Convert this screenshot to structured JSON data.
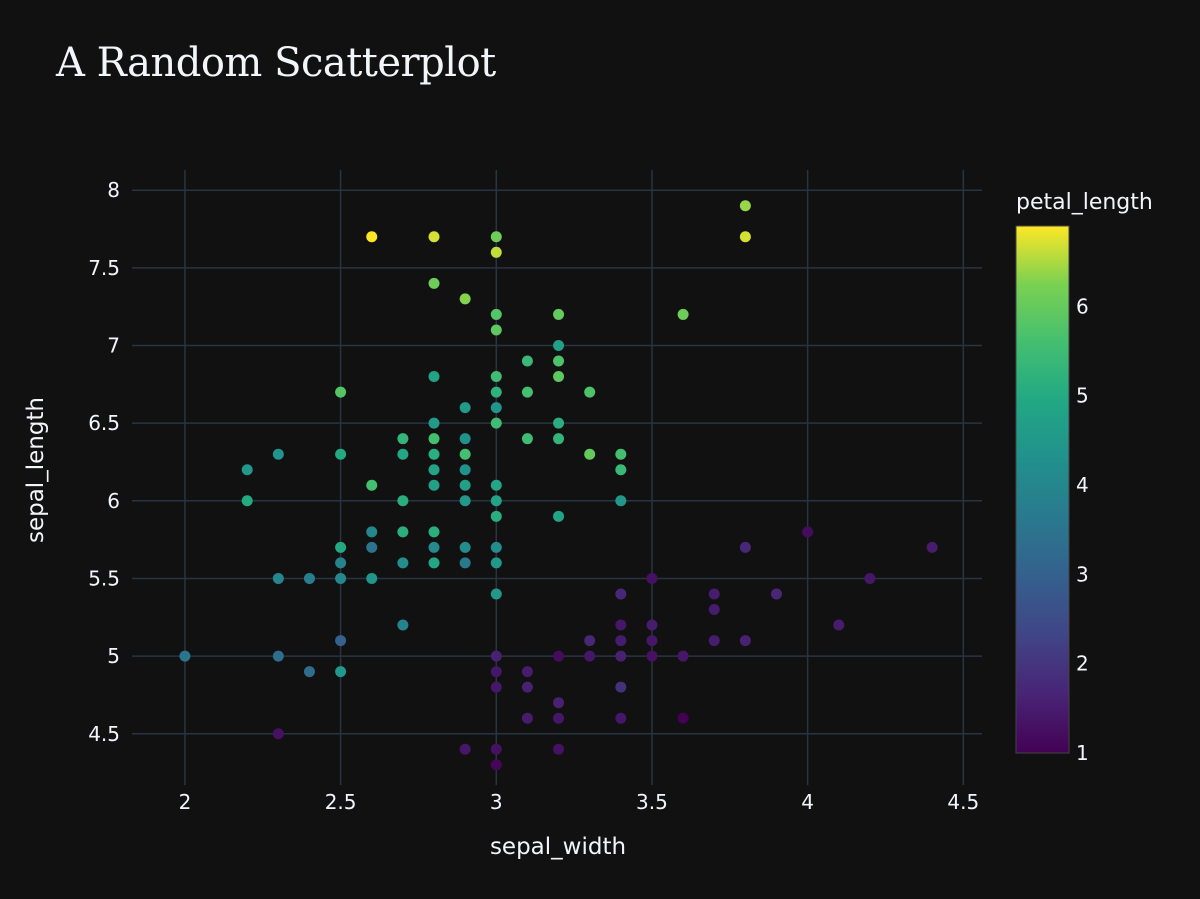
{
  "chart_data": {
    "type": "scatter",
    "title": "A Random Scatterplot",
    "xlabel": "sepal_width",
    "ylabel": "sepal_length",
    "xlim": [
      1.83,
      4.56
    ],
    "ylim": [
      4.17,
      8.13
    ],
    "x_ticks": [
      "2",
      "2.5",
      "3",
      "3.5",
      "4",
      "4.5"
    ],
    "y_ticks": [
      "4.5",
      "5",
      "5.5",
      "6",
      "6.5",
      "7",
      "7.5",
      "8"
    ],
    "colorbar": {
      "title": "petal_length",
      "range": [
        1,
        6.9
      ],
      "ticks": [
        "1",
        "2",
        "3",
        "4",
        "5",
        "6"
      ],
      "colorscale": "Viridis"
    },
    "grid": true,
    "background": "#111111",
    "grid_color": "#283442",
    "text_color": "#f2f5fa",
    "points": [
      [
        2.0,
        5.0,
        3.5
      ],
      [
        2.2,
        6.2,
        4.5
      ],
      [
        2.2,
        6.0,
        5.0
      ],
      [
        2.3,
        6.3,
        4.4
      ],
      [
        2.3,
        5.5,
        4.0
      ],
      [
        2.3,
        5.0,
        3.3
      ],
      [
        2.3,
        4.5,
        1.3
      ],
      [
        2.4,
        5.5,
        3.8
      ],
      [
        2.4,
        4.9,
        3.3
      ],
      [
        2.5,
        6.7,
        5.8
      ],
      [
        2.5,
        6.3,
        5.0
      ],
      [
        2.5,
        5.7,
        5.0
      ],
      [
        2.5,
        5.6,
        3.9
      ],
      [
        2.5,
        5.5,
        4.0
      ],
      [
        2.5,
        5.1,
        3.0
      ],
      [
        2.5,
        4.9,
        4.5
      ],
      [
        2.6,
        7.7,
        6.9
      ],
      [
        2.6,
        6.1,
        5.6
      ],
      [
        2.6,
        5.8,
        4.0
      ],
      [
        2.6,
        5.7,
        3.5
      ],
      [
        2.6,
        5.5,
        4.4
      ],
      [
        2.7,
        6.4,
        5.3
      ],
      [
        2.7,
        6.3,
        4.9
      ],
      [
        2.7,
        6.0,
        5.1
      ],
      [
        2.7,
        5.8,
        5.1
      ],
      [
        2.7,
        5.6,
        4.2
      ],
      [
        2.7,
        5.2,
        3.9
      ],
      [
        2.8,
        7.7,
        6.7
      ],
      [
        2.8,
        7.4,
        6.1
      ],
      [
        2.8,
        6.8,
        4.8
      ],
      [
        2.8,
        6.5,
        4.6
      ],
      [
        2.8,
        6.4,
        5.6
      ],
      [
        2.8,
        6.3,
        5.1
      ],
      [
        2.8,
        6.2,
        4.8
      ],
      [
        2.8,
        6.1,
        4.7
      ],
      [
        2.8,
        5.8,
        5.1
      ],
      [
        2.8,
        5.7,
        4.1
      ],
      [
        2.8,
        5.6,
        4.9
      ],
      [
        2.9,
        7.3,
        6.3
      ],
      [
        2.9,
        6.6,
        4.6
      ],
      [
        2.9,
        6.4,
        4.3
      ],
      [
        2.9,
        6.3,
        5.6
      ],
      [
        2.9,
        6.2,
        4.3
      ],
      [
        2.9,
        6.1,
        4.7
      ],
      [
        2.9,
        6.0,
        4.5
      ],
      [
        2.9,
        5.7,
        4.2
      ],
      [
        2.9,
        5.6,
        3.6
      ],
      [
        2.9,
        4.4,
        1.4
      ],
      [
        3.0,
        7.7,
        6.1
      ],
      [
        3.0,
        7.6,
        6.6
      ],
      [
        3.0,
        7.2,
        5.8
      ],
      [
        3.0,
        7.1,
        5.9
      ],
      [
        3.0,
        6.8,
        5.5
      ],
      [
        3.0,
        6.7,
        5.2
      ],
      [
        3.0,
        6.6,
        4.4
      ],
      [
        3.0,
        6.5,
        5.5
      ],
      [
        3.0,
        6.1,
        4.9
      ],
      [
        3.0,
        6.0,
        4.8
      ],
      [
        3.0,
        5.9,
        5.1
      ],
      [
        3.0,
        5.7,
        4.2
      ],
      [
        3.0,
        5.6,
        4.5
      ],
      [
        3.0,
        5.4,
        4.5
      ],
      [
        3.0,
        5.0,
        1.6
      ],
      [
        3.0,
        4.9,
        1.4
      ],
      [
        3.0,
        4.8,
        1.4
      ],
      [
        3.0,
        4.4,
        1.3
      ],
      [
        3.0,
        4.3,
        1.1
      ],
      [
        3.1,
        6.9,
        5.4
      ],
      [
        3.1,
        6.7,
        5.6
      ],
      [
        3.1,
        6.4,
        5.5
      ],
      [
        3.1,
        4.9,
        1.5
      ],
      [
        3.1,
        4.8,
        1.6
      ],
      [
        3.1,
        4.6,
        1.5
      ],
      [
        3.2,
        7.2,
        6.0
      ],
      [
        3.2,
        7.0,
        4.7
      ],
      [
        3.2,
        6.9,
        5.7
      ],
      [
        3.2,
        6.8,
        5.9
      ],
      [
        3.2,
        6.5,
        5.1
      ],
      [
        3.2,
        6.4,
        5.3
      ],
      [
        3.2,
        5.9,
        4.8
      ],
      [
        3.2,
        5.0,
        1.2
      ],
      [
        3.2,
        4.7,
        1.6
      ],
      [
        3.2,
        4.6,
        1.4
      ],
      [
        3.2,
        4.4,
        1.3
      ],
      [
        3.3,
        6.7,
        5.7
      ],
      [
        3.3,
        6.3,
        6.0
      ],
      [
        3.3,
        5.1,
        1.7
      ],
      [
        3.3,
        5.0,
        1.4
      ],
      [
        3.4,
        6.3,
        5.6
      ],
      [
        3.4,
        6.2,
        5.4
      ],
      [
        3.4,
        6.0,
        4.5
      ],
      [
        3.4,
        5.4,
        1.7
      ],
      [
        3.4,
        5.2,
        1.4
      ],
      [
        3.4,
        5.1,
        1.5
      ],
      [
        3.4,
        5.0,
        1.6
      ],
      [
        3.4,
        4.8,
        1.9
      ],
      [
        3.4,
        4.6,
        1.4
      ],
      [
        3.5,
        5.5,
        1.3
      ],
      [
        3.5,
        5.2,
        1.5
      ],
      [
        3.5,
        5.1,
        1.4
      ],
      [
        3.5,
        5.0,
        1.3
      ],
      [
        3.6,
        7.2,
        6.1
      ],
      [
        3.6,
        5.0,
        1.4
      ],
      [
        3.6,
        4.6,
        1.0
      ],
      [
        3.7,
        5.4,
        1.5
      ],
      [
        3.7,
        5.3,
        1.5
      ],
      [
        3.7,
        5.1,
        1.5
      ],
      [
        3.8,
        7.9,
        6.4
      ],
      [
        3.8,
        7.7,
        6.7
      ],
      [
        3.8,
        5.7,
        1.7
      ],
      [
        3.8,
        5.1,
        1.6
      ],
      [
        3.9,
        5.4,
        1.7
      ],
      [
        4.0,
        5.8,
        1.2
      ],
      [
        4.1,
        5.2,
        1.5
      ],
      [
        4.2,
        5.5,
        1.4
      ],
      [
        4.4,
        5.7,
        1.5
      ]
    ]
  }
}
